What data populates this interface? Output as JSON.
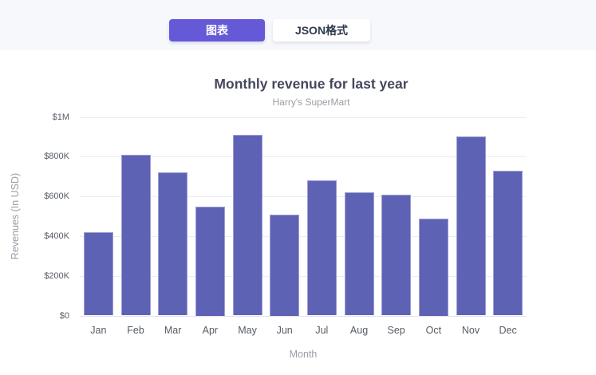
{
  "topbar": {
    "chart_tab_label": "图表",
    "json_tab_label": "JSON格式"
  },
  "colors": {
    "topbar_bg": "#F7F8FC",
    "active_tab_bg": "#6559D8",
    "active_tab_text": "#FFFFFF",
    "inactive_tab_bg": "#FFFFFF",
    "inactive_tab_text": "#2E3A4D",
    "bar": "#5D62B5",
    "grid": "#ECEDF2",
    "axis_line": "#E3E4E9",
    "tick_text": "#555B66",
    "title_text": "#45475E",
    "muted_text": "#9A9DA5"
  },
  "chart_data": {
    "type": "bar",
    "title": "Monthly revenue for last year",
    "subtitle": "Harry's SuperMart",
    "xlabel": "Month",
    "ylabel": "Revenues (In USD)",
    "categories": [
      "Jan",
      "Feb",
      "Mar",
      "Apr",
      "May",
      "Jun",
      "Jul",
      "Aug",
      "Sep",
      "Oct",
      "Nov",
      "Dec"
    ],
    "values": [
      420000,
      810000,
      720000,
      550000,
      910000,
      510000,
      680000,
      620000,
      610000,
      490000,
      900000,
      730000
    ],
    "ylim": [
      0,
      1000000
    ],
    "y_tick_labels": [
      "$0",
      "$200K",
      "$400K",
      "$600K",
      "$800K",
      "$1M"
    ],
    "grid": true,
    "legend": "none"
  }
}
